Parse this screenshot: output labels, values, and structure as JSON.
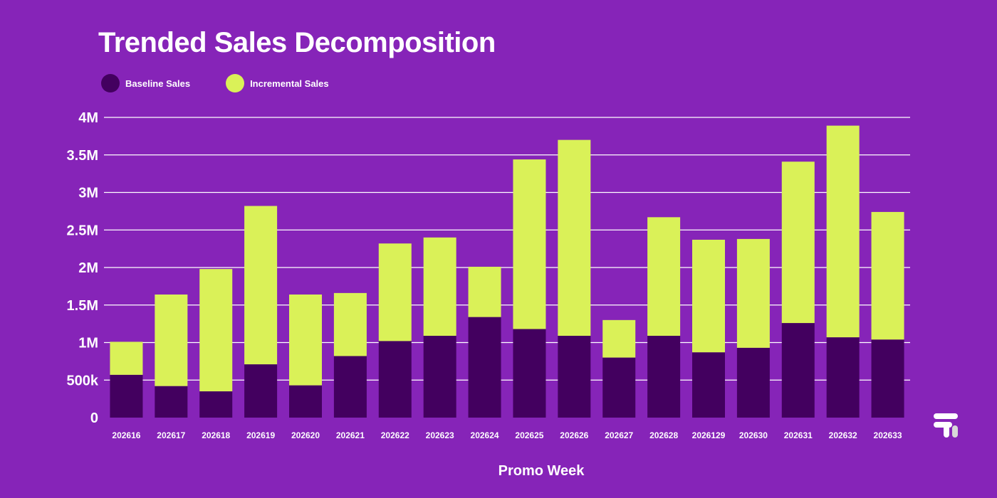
{
  "colors": {
    "background": "#8624b8",
    "baseline": "#43005f",
    "incremental": "#daf158",
    "grid": "#ffffff"
  },
  "chart_data": {
    "type": "bar",
    "stacked": true,
    "title": "Trended Sales Decomposition",
    "xlabel": "Promo Week",
    "ylabel": "",
    "ylim": [
      0,
      4000000
    ],
    "yticks": [
      {
        "value": 0,
        "label": "0"
      },
      {
        "value": 500000,
        "label": "500k"
      },
      {
        "value": 1000000,
        "label": "1M"
      },
      {
        "value": 1500000,
        "label": "1.5M"
      },
      {
        "value": 2000000,
        "label": "2M"
      },
      {
        "value": 2500000,
        "label": "2.5M"
      },
      {
        "value": 3000000,
        "label": "3M"
      },
      {
        "value": 3500000,
        "label": "3.5M"
      },
      {
        "value": 4000000,
        "label": "4M"
      }
    ],
    "grid": true,
    "legend_position": "top-left",
    "categories": [
      "202616",
      "202617",
      "202618",
      "202619",
      "202620",
      "202621",
      "202622",
      "202623",
      "202624",
      "202625",
      "202626",
      "202627",
      "202628",
      "2026129",
      "202630",
      "202631",
      "202632",
      "202633"
    ],
    "series": [
      {
        "name": "Baseline Sales",
        "color_key": "baseline",
        "values": [
          570000,
          420000,
          350000,
          710000,
          430000,
          820000,
          1020000,
          1090000,
          1340000,
          1180000,
          1090000,
          800000,
          1090000,
          870000,
          930000,
          1260000,
          1070000,
          1040000
        ]
      },
      {
        "name": "Incremental Sales",
        "color_key": "incremental",
        "values": [
          440000,
          1220000,
          1630000,
          2110000,
          1210000,
          840000,
          1300000,
          1310000,
          670000,
          2260000,
          2610000,
          500000,
          1580000,
          1500000,
          1450000,
          2150000,
          2820000,
          1700000
        ]
      }
    ]
  },
  "logo": {
    "name": "brand-logo-icon"
  }
}
